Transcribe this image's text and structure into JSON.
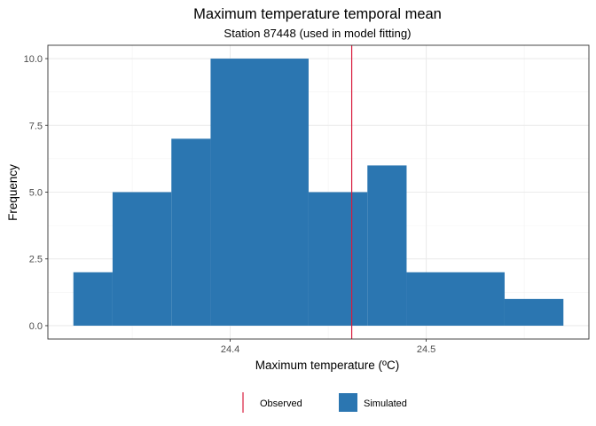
{
  "chart_data": {
    "type": "bar",
    "title": "Maximum temperature temporal mean",
    "subtitle": "Station 87448 (used in model fitting)",
    "xlabel": "Maximum temperature (ºC)",
    "ylabel": "Frequency",
    "xlim": [
      24.307,
      24.583
    ],
    "ylim": [
      -0.5,
      10.5
    ],
    "x_ticks": [
      24.4,
      24.5
    ],
    "x_tick_labels": [
      "24.4",
      "24.5"
    ],
    "y_ticks": [
      0,
      2.5,
      5,
      7.5,
      10
    ],
    "y_tick_labels": [
      "0.0",
      "2.5",
      "5.0",
      "7.5",
      "10.0"
    ],
    "grid": true,
    "bins": [
      {
        "start": 24.32,
        "end": 24.34,
        "count": 2
      },
      {
        "start": 24.34,
        "end": 24.37,
        "count": 5
      },
      {
        "start": 24.37,
        "end": 24.39,
        "count": 7
      },
      {
        "start": 24.39,
        "end": 24.44,
        "count": 10
      },
      {
        "start": 24.44,
        "end": 24.47,
        "count": 5
      },
      {
        "start": 24.47,
        "end": 24.49,
        "count": 6
      },
      {
        "start": 24.49,
        "end": 24.54,
        "count": 2
      },
      {
        "start": 24.54,
        "end": 24.57,
        "count": 1
      }
    ],
    "observed": 24.462,
    "colors": {
      "simulated": "#2b76b1",
      "observed": "#d81b3c"
    },
    "legend": {
      "position": "bottom",
      "items": [
        {
          "label": "Observed",
          "kind": "line",
          "color": "#d81b3c"
        },
        {
          "label": "Simulated",
          "kind": "box",
          "color": "#2b76b1"
        }
      ]
    }
  }
}
